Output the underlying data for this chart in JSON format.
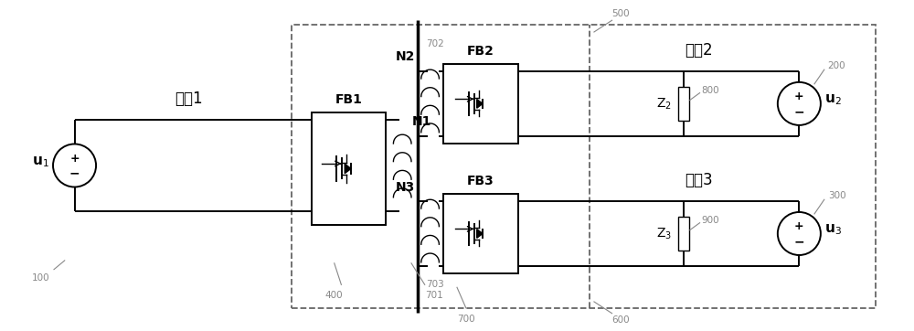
{
  "bg_color": "#ffffff",
  "line_color": "#000000",
  "gray_color": "#888888",
  "fig_width": 10.0,
  "fig_height": 3.62,
  "labels": {
    "u1": "u$_1$",
    "u2": "u$_2$",
    "u3": "u$_3$",
    "fanqu1": "分区1",
    "fanqu2": "分区2",
    "fanqu3": "分区3",
    "FB1": "FB1",
    "FB2": "FB2",
    "FB3": "FB3",
    "N1": "N1",
    "N2": "N2",
    "N3": "N3",
    "Z2": "Z$_2$",
    "Z3": "Z$_3$",
    "ref100": "100",
    "ref200": "200",
    "ref300": "300",
    "ref400": "400",
    "ref500": "500",
    "ref600": "600",
    "ref700": "700",
    "ref701": "701",
    "ref702": "702",
    "ref703": "703",
    "ref800": "800",
    "ref900": "900"
  }
}
